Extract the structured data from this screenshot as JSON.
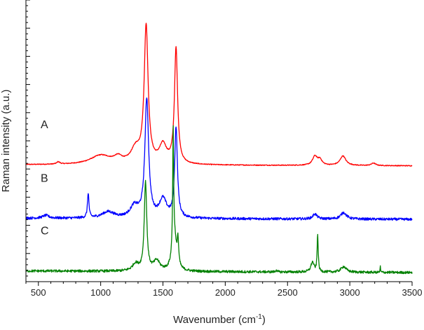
{
  "chart_data": {
    "type": "line",
    "title": "",
    "xlabel": "Wavenumber (cm",
    "xlabel_sup": "-1",
    "xlabel_suffix": ")",
    "ylabel": "Raman intensity (a.u.)",
    "xlim": [
      400,
      3500
    ],
    "ylim": [
      0,
      100
    ],
    "x_ticks": [
      500,
      1000,
      1500,
      2000,
      2500,
      3000,
      3500
    ],
    "y_tick_labels": "none",
    "grid": false,
    "legend": "none",
    "series": [
      {
        "name": "A",
        "color": "#ff0000",
        "baseline": 41.5,
        "slope": -0.00012,
        "noise": 0.15,
        "peaks": [
          {
            "x": 1000,
            "h": 3.2,
            "w": 200
          },
          {
            "x": 1140,
            "h": 2.0,
            "w": 80
          },
          {
            "x": 1365,
            "h": 48.5,
            "w": 38
          },
          {
            "x": 1280,
            "h": 5,
            "w": 90
          },
          {
            "x": 1500,
            "h": 6.5,
            "w": 70
          },
          {
            "x": 1605,
            "h": 41,
            "w": 30
          },
          {
            "x": 660,
            "h": 0.8,
            "w": 30
          },
          {
            "x": 2720,
            "h": 3.2,
            "w": 45
          },
          {
            "x": 2760,
            "h": 2.0,
            "w": 40
          },
          {
            "x": 2945,
            "h": 3.4,
            "w": 55
          },
          {
            "x": 3190,
            "h": 0.9,
            "w": 40
          }
        ]
      },
      {
        "name": "B",
        "color": "#0000ff",
        "baseline": 22.5,
        "slope": -0.00012,
        "noise": 0.45,
        "peaks": [
          {
            "x": 900,
            "h": 8.8,
            "w": 14
          },
          {
            "x": 1060,
            "h": 2.2,
            "w": 120
          },
          {
            "x": 1370,
            "h": 42,
            "w": 36
          },
          {
            "x": 1270,
            "h": 4,
            "w": 80
          },
          {
            "x": 1500,
            "h": 6.5,
            "w": 70
          },
          {
            "x": 1605,
            "h": 32,
            "w": 26
          },
          {
            "x": 560,
            "h": 1.0,
            "w": 60
          },
          {
            "x": 2720,
            "h": 1.8,
            "w": 40
          },
          {
            "x": 2950,
            "h": 2.3,
            "w": 55
          }
        ]
      },
      {
        "name": "C",
        "color": "#008000",
        "baseline": 3.8,
        "slope": -0.00018,
        "noise": 0.45,
        "peaks": [
          {
            "x": 1360,
            "h": 31.5,
            "w": 24
          },
          {
            "x": 1280,
            "h": 2.5,
            "w": 60
          },
          {
            "x": 1450,
            "h": 3.5,
            "w": 60
          },
          {
            "x": 1582,
            "h": 40.5,
            "w": 9
          },
          {
            "x": 1590,
            "h": 12.5,
            "w": 40
          },
          {
            "x": 1620,
            "h": 9.0,
            "w": 14
          },
          {
            "x": 2700,
            "h": 3.5,
            "w": 30
          },
          {
            "x": 2742,
            "h": 13.5,
            "w": 10
          },
          {
            "x": 2950,
            "h": 2.0,
            "w": 50
          },
          {
            "x": 3245,
            "h": 2.0,
            "w": 5
          },
          {
            "x": 2410,
            "h": 0.8,
            "w": 10
          }
        ]
      }
    ]
  }
}
